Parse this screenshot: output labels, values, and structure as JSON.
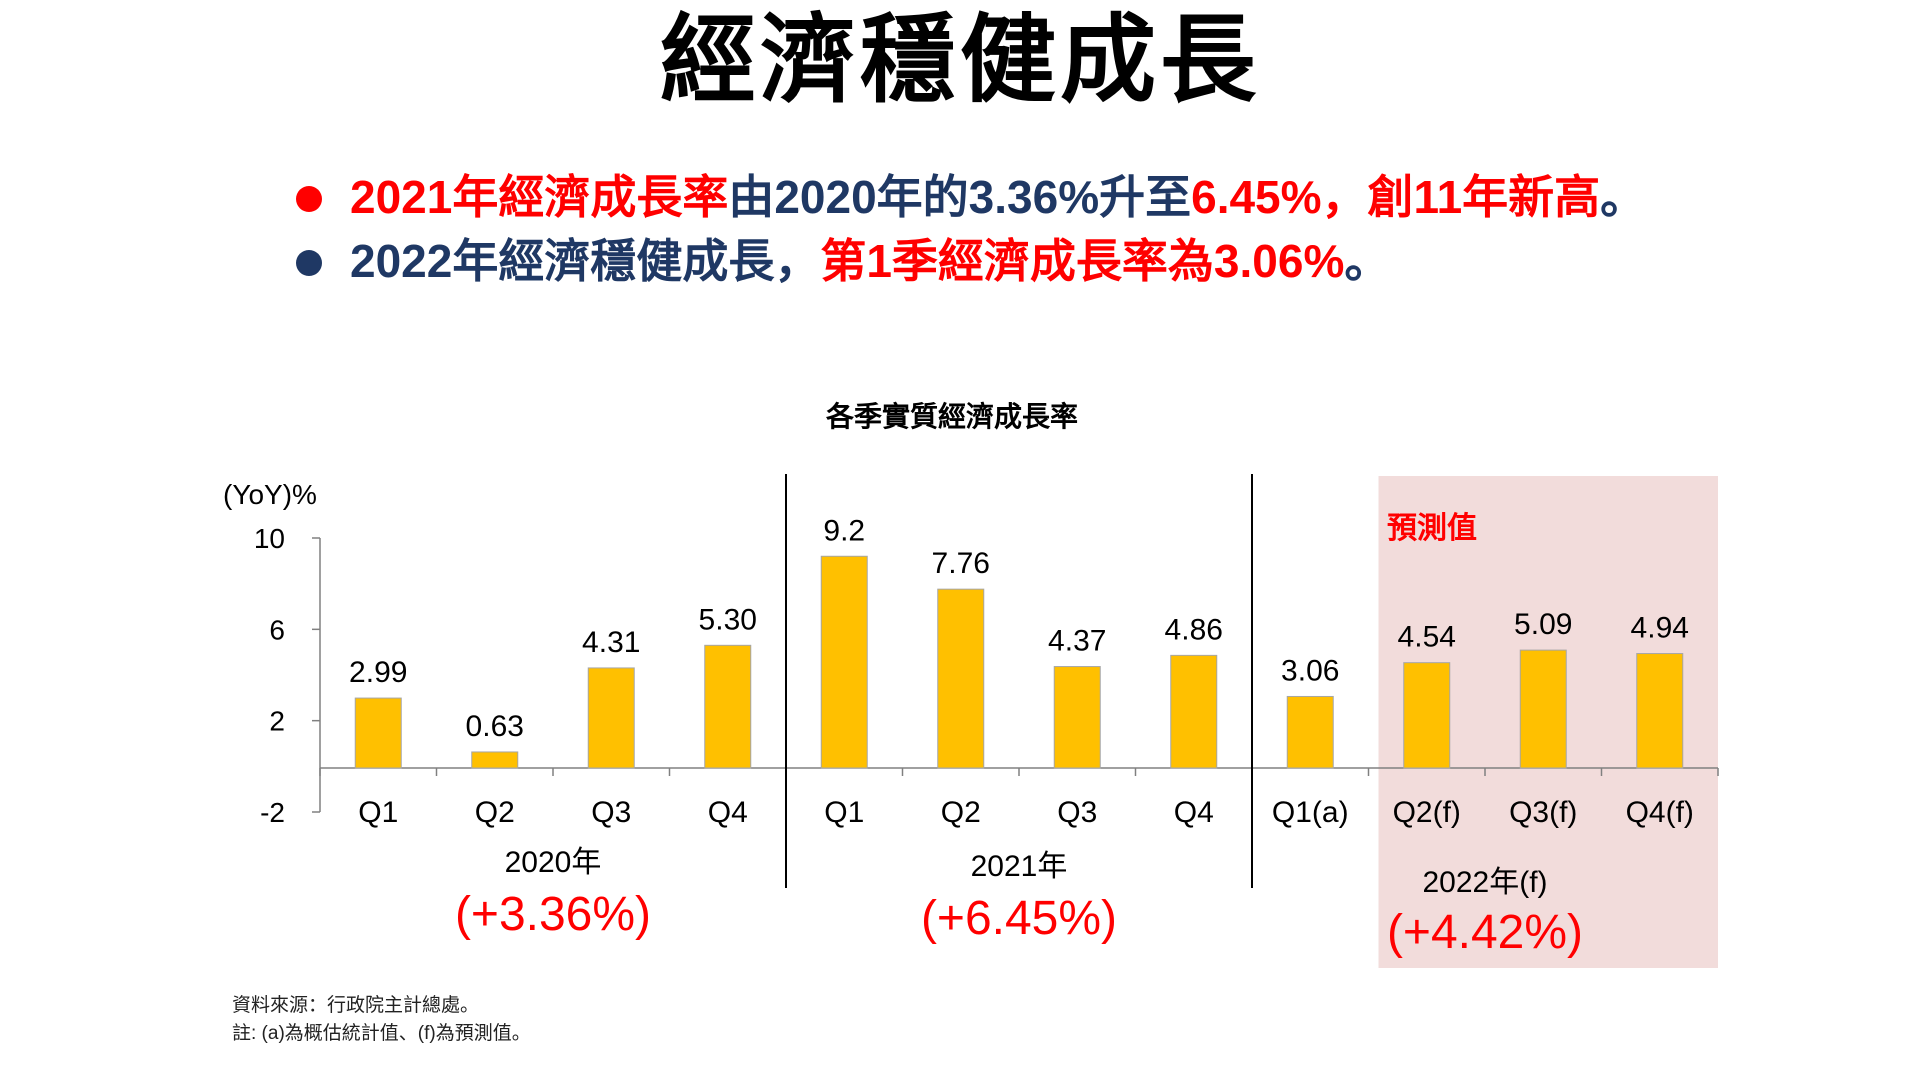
{
  "page": {
    "title": "經濟穩健成長",
    "bullets": [
      {
        "dot_color": "#ff0000",
        "segments": [
          {
            "text": "2021年經濟成長率",
            "color": "#ff0000"
          },
          {
            "text": "由2020年的3.36%升至",
            "color": "#1f3864"
          },
          {
            "text": "6.45%，創11年新高",
            "color": "#ff0000"
          },
          {
            "text": "。",
            "color": "#1f3864"
          }
        ]
      },
      {
        "dot_color": "#1f3864",
        "segments": [
          {
            "text": "2022年經濟穩健成長，",
            "color": "#1f3864"
          },
          {
            "text": "第1季經濟成長率為3.06%",
            "color": "#ff0000"
          },
          {
            "text": "。",
            "color": "#1f3864"
          }
        ]
      }
    ],
    "source_note": "資料來源：行政院主計總處。",
    "footnote": "註: (a)為概估統計值、(f)為預測值。"
  },
  "chart_data": {
    "type": "bar",
    "title": "各季實質經濟成長率",
    "ylabel": "(YoY)%",
    "ylim": [
      -2,
      10
    ],
    "yticks": [
      "10",
      "6",
      "2",
      "-2"
    ],
    "ytick_values": [
      10,
      6,
      2,
      -2
    ],
    "bar_color": "#ffc000",
    "forecast_shade_color": "#f2dcdb",
    "forecast_label": "預測值",
    "forecast_label_color": "#ff0000",
    "groups": [
      {
        "label": "2020年",
        "annual": "(+3.36%)"
      },
      {
        "label": "2021年",
        "annual": "(+6.45%)"
      },
      {
        "label": "2022年(f)",
        "annual": "(+4.42%)"
      }
    ],
    "categories": [
      "Q1",
      "Q2",
      "Q3",
      "Q4",
      "Q1",
      "Q2",
      "Q3",
      "Q4",
      "Q1(a)",
      "Q2(f)",
      "Q3(f)",
      "Q4(f)"
    ],
    "values": [
      2.99,
      0.63,
      4.31,
      5.3,
      9.2,
      7.76,
      4.37,
      4.86,
      3.06,
      4.54,
      5.09,
      4.94
    ],
    "value_labels": [
      "2.99",
      "0.63",
      "4.31",
      "5.30",
      "9.2",
      "7.76",
      "4.37",
      "4.86",
      "3.06",
      "4.54",
      "5.09",
      "4.94"
    ],
    "annual_color": "#ff0000"
  }
}
